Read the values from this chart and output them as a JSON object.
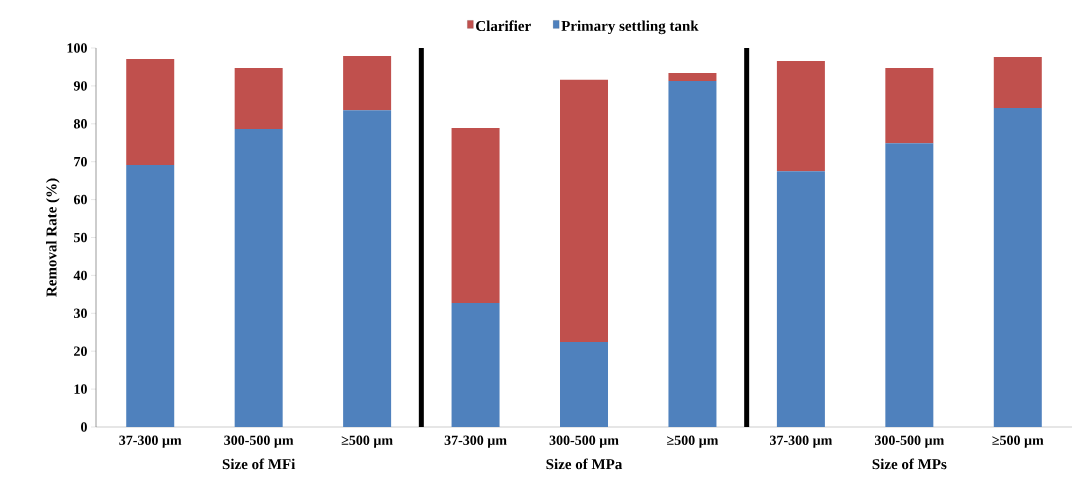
{
  "chart_data": {
    "type": "bar",
    "stacked": true,
    "ylabel": "Removal Rate (%)",
    "categories": [
      "37-300 µm",
      "300-500 µm",
      "≥500 µm",
      "37-300 µm",
      "300-500 µm",
      "≥500 µm",
      "37-300 µm",
      "300-500 µm",
      "≥500 µm"
    ],
    "series": [
      {
        "name": "Primary settling tank",
        "color": "#4f81bd",
        "values": [
          69.1,
          78.6,
          83.6,
          32.7,
          22.4,
          91.3,
          67.5,
          74.9,
          84.2
        ]
      },
      {
        "name": "Clarifier",
        "color": "#c0504d",
        "values": [
          28.0,
          16.1,
          14.3,
          46.2,
          69.2,
          2.1,
          29.1,
          19.8,
          13.4
        ]
      }
    ],
    "ylim": [
      0,
      100
    ],
    "yticks": [
      0,
      10,
      20,
      30,
      40,
      50,
      60,
      70,
      80,
      90,
      100
    ],
    "annotations": [
      "Size of MFi",
      "Size of MPa",
      "Size of MPs"
    ],
    "legend": "top",
    "grid": false
  }
}
